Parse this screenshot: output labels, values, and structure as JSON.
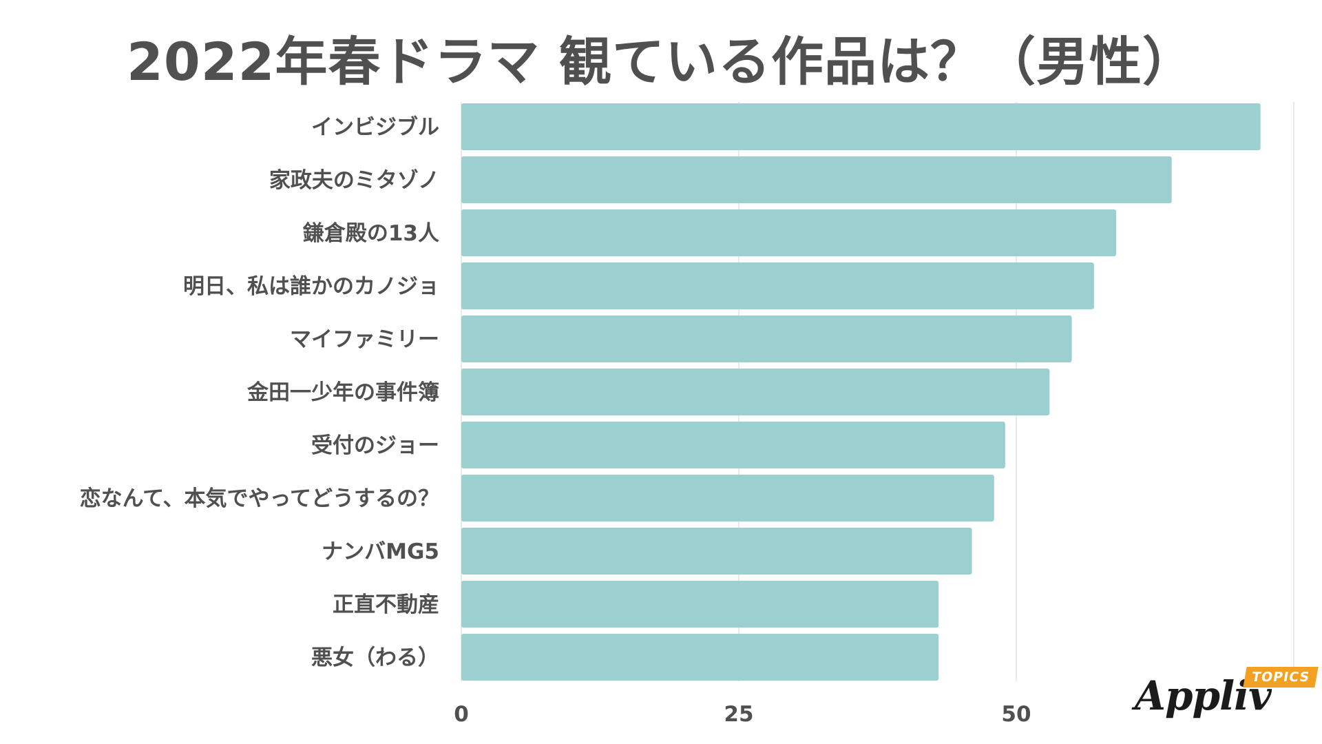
{
  "chart_data": {
    "type": "bar",
    "orientation": "horizontal",
    "title": "2022年春ドラマ 観ている作品は？（男性）",
    "categories": [
      "インビジブル",
      "家政夫のミタゾノ",
      "鎌倉殿の13人",
      "明日、私は誰かのカノジョ",
      "マイファミリー",
      "金田一少年の事件簿",
      "受付のジョー",
      "恋なんて、本気でやってどうするの？",
      "ナンバMG5",
      "正直不動産",
      "悪女（わる）"
    ],
    "values": [
      72,
      64,
      59,
      57,
      55,
      53,
      49,
      48,
      46,
      43,
      43
    ],
    "xlim": [
      0,
      75
    ],
    "xticks": [
      "0",
      "25",
      "50"
    ],
    "xtick_values": [
      0,
      25,
      50
    ],
    "grid": true,
    "legend": "none",
    "colors": {
      "bar": "#9bcfd0",
      "grid": "#e2e2e2",
      "text": "#505050"
    }
  },
  "logo": {
    "brand": "Appliv",
    "badge": "TOPICS"
  }
}
